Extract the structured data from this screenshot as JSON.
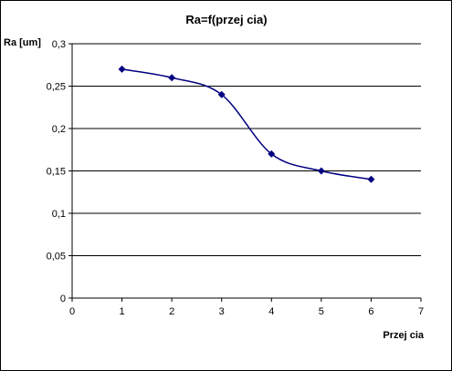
{
  "chart_data": {
    "type": "line",
    "title": "Ra=f(przej  cia)",
    "xlabel": "Przej  cia",
    "ylabel": "Ra [um]",
    "xlim": [
      0,
      7
    ],
    "ylim": [
      0,
      0.3
    ],
    "x_ticks": [
      "0",
      "1",
      "2",
      "3",
      "4",
      "5",
      "6",
      "7"
    ],
    "y_ticks": [
      "0",
      "0,05",
      "0,1",
      "0,15",
      "0,2",
      "0,25",
      "0,3"
    ],
    "grid": "horizontal",
    "legend": "none",
    "series": [
      {
        "x": [
          1,
          2,
          3,
          4,
          5,
          6
        ],
        "values": [
          0.27,
          0.26,
          0.24,
          0.17,
          0.15,
          0.14
        ],
        "color": "#000080",
        "marker": "diamond",
        "smooth": true
      }
    ]
  }
}
